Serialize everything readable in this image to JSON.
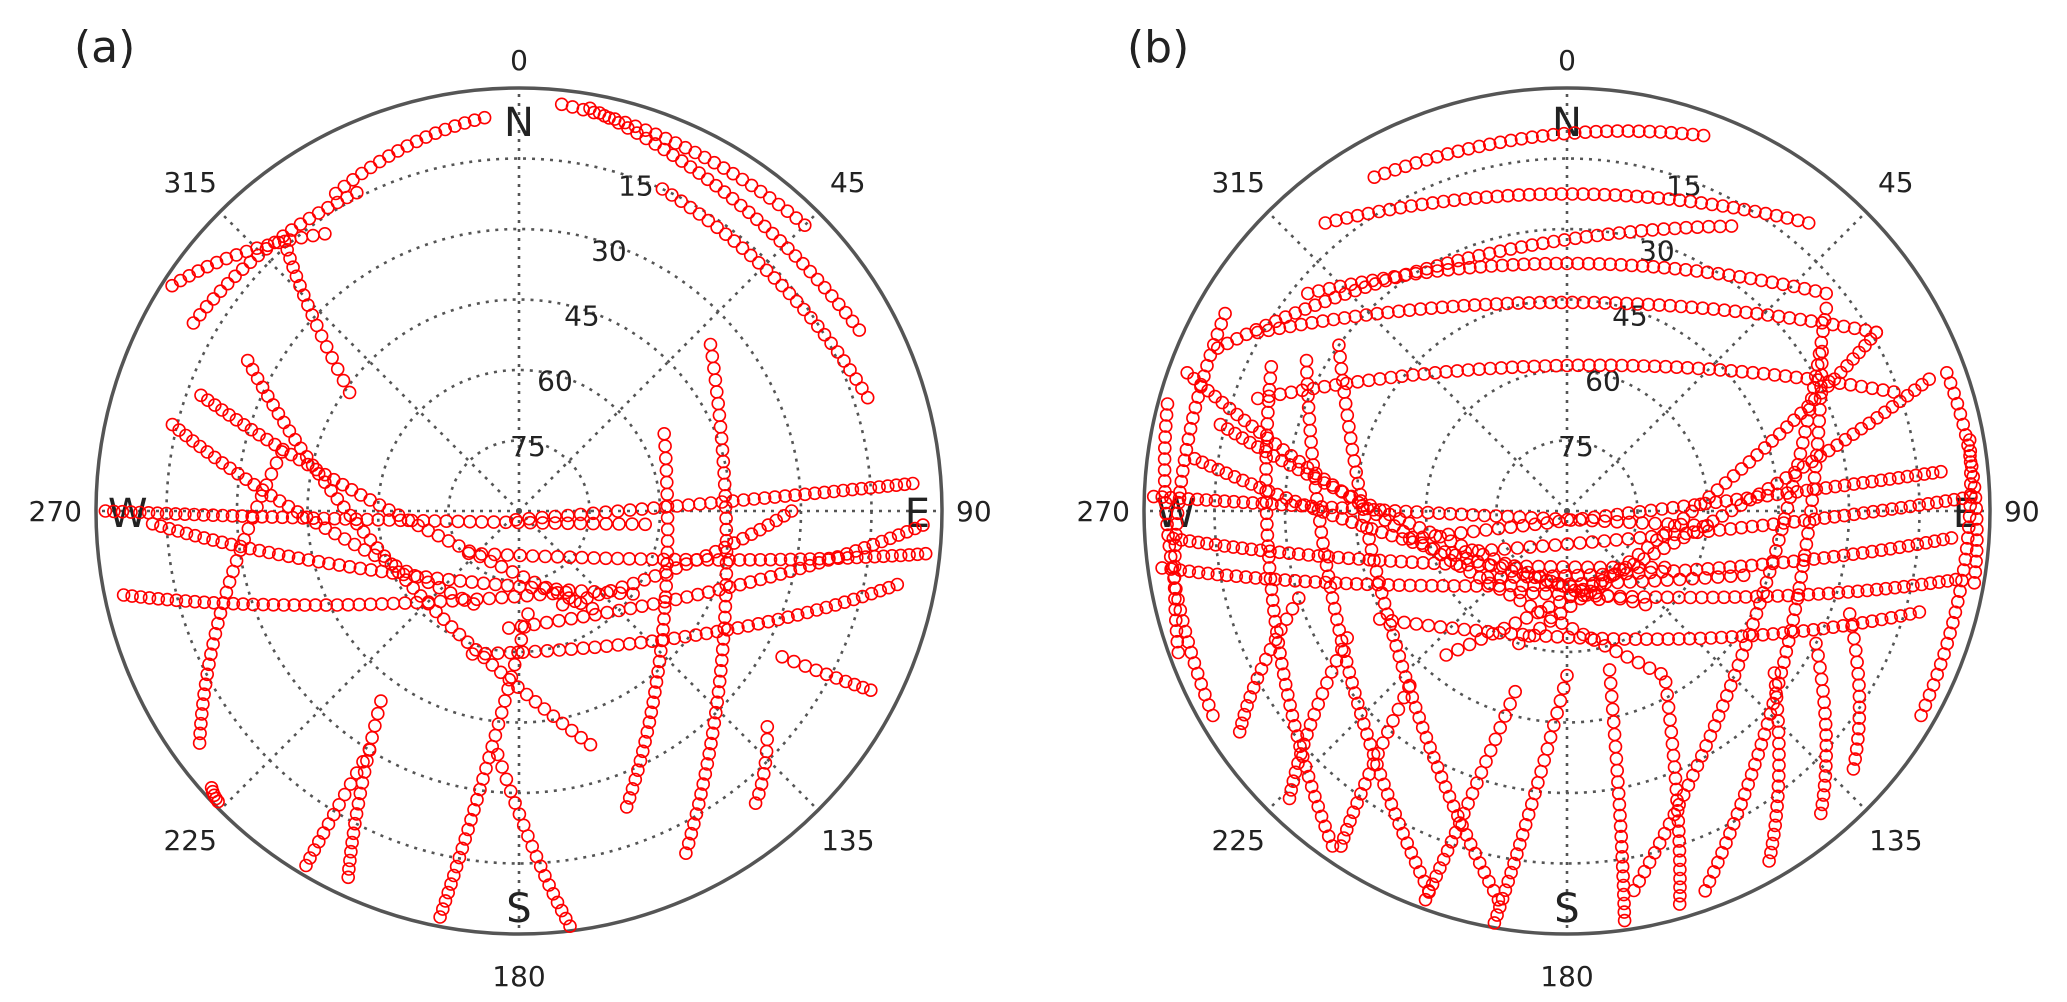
{
  "figure": {
    "point_color": "#ff0000",
    "grid_color": "#555555"
  },
  "chart_data": [
    {
      "type": "scatter",
      "panel_label": "(a)",
      "projection": "polar",
      "title": "",
      "xlabel": "",
      "ylabel": "",
      "azimuth_range": [
        0,
        360
      ],
      "elevation_range": [
        0,
        90
      ],
      "azimuth_ticks": [
        "0",
        "45",
        "90",
        "135",
        "180",
        "225",
        "270",
        "315"
      ],
      "elevation_ticks": [
        "15",
        "30",
        "45",
        "60",
        "75"
      ],
      "direction_labels": [
        "N",
        "E",
        "S",
        "W"
      ],
      "grid": true,
      "legend": "none",
      "series": [
        {
          "azimuth": [
            5,
            360
          ],
          "elevation": [
            2,
            1
          ],
          "note": ""
        },
        {
          "points": [
            [
              340,
              4
            ],
            [
              332,
              8
            ],
            [
              322,
              14
            ],
            [
              312,
              22
            ],
            [
              302,
              31
            ]
          ]
        }
      ],
      "tracks": [
        {
          "az0": 330,
          "el0": 12,
          "az1": 355,
          "el1": 6
        },
        {
          "az0": 303,
          "el0": 2,
          "az1": 325,
          "el1": 18
        },
        {
          "az0": 300,
          "el0": 10,
          "az1": 333,
          "el1": 14
        },
        {
          "az0": 319,
          "el0": 14,
          "az1": 305,
          "el1": 46
        },
        {
          "az0": 6,
          "el0": 3,
          "az1": 45,
          "el1": 4
        },
        {
          "az0": 10,
          "el0": 3,
          "az1": 62,
          "el1": 8
        },
        {
          "az0": 24,
          "el0": 15,
          "az1": 72,
          "el1": 12
        },
        {
          "az0": 90,
          "el0": 32,
          "az1": 155,
          "el1": 68
        },
        {
          "az0": 86,
          "el0": 6,
          "az1": 200,
          "el1": 88
        },
        {
          "az0": 92,
          "el0": 4,
          "az1": 185,
          "el1": 65
        },
        {
          "az0": 96,
          "el0": 3,
          "az1": 230,
          "el1": 76
        },
        {
          "az0": 101,
          "el0": 8,
          "az1": 198,
          "el1": 58
        },
        {
          "az0": 62,
          "el0": 55,
          "az1": 160,
          "el1": 23
        },
        {
          "az0": 49,
          "el0": 36,
          "az1": 154,
          "el1": 9
        },
        {
          "az0": 141,
          "el0": 10,
          "az1": 131,
          "el1": 20
        },
        {
          "az0": 117,
          "el0": 6,
          "az1": 119,
          "el1": 26
        },
        {
          "az0": 270,
          "el0": 2,
          "az1": 96,
          "el1": 63
        },
        {
          "az0": 258,
          "el0": 4,
          "az1": 150,
          "el1": 70
        },
        {
          "az0": 268,
          "el0": 12,
          "az1": 126,
          "el1": 60
        },
        {
          "az0": 284,
          "el0": 14,
          "az1": 206,
          "el1": 68
        },
        {
          "az0": 290,
          "el0": 18,
          "az1": 143,
          "el1": 64
        },
        {
          "az0": 299,
          "el0": 24,
          "az1": 163,
          "el1": 38
        },
        {
          "az0": 234,
          "el0": 6,
          "az1": 284,
          "el1": 38
        },
        {
          "az0": 211,
          "el0": 2,
          "az1": 212,
          "el1": 30
        },
        {
          "az0": 205,
          "el0": 4,
          "az1": 216,
          "el1": 40
        },
        {
          "az0": 191,
          "el0": 2,
          "az1": 175,
          "el1": 68
        },
        {
          "az0": 173,
          "el0": 1,
          "az1": 185,
          "el1": 38
        },
        {
          "az0": 228,
          "el0": 2,
          "az1": 226,
          "el1": 1
        }
      ]
    },
    {
      "type": "scatter",
      "panel_label": "(b)",
      "projection": "polar",
      "title": "",
      "xlabel": "",
      "ylabel": "",
      "azimuth_range": [
        0,
        360
      ],
      "elevation_range": [
        0,
        90
      ],
      "azimuth_ticks": [
        "0",
        "45",
        "90",
        "135",
        "180",
        "225",
        "270",
        "315"
      ],
      "elevation_ticks": [
        "15",
        "30",
        "45",
        "60",
        "75"
      ],
      "direction_labels": [
        "N",
        "E",
        "S",
        "W"
      ],
      "grid": true,
      "legend": "none",
      "tracks": [
        {
          "az0": 300,
          "el0": 14,
          "az1": 60,
          "el1": 14
        },
        {
          "az0": 310,
          "el0": 18,
          "az1": 50,
          "el1": 18
        },
        {
          "az0": 320,
          "el0": 10,
          "az1": 40,
          "el1": 10
        },
        {
          "az0": 295,
          "el0": 8,
          "az1": 30,
          "el1": 20
        },
        {
          "az0": 290,
          "el0": 20,
          "az1": 70,
          "el1": 16
        },
        {
          "az0": 330,
          "el0": 8,
          "az1": 20,
          "el1": 5
        },
        {
          "az0": 272,
          "el0": 2,
          "az1": 96,
          "el1": 60
        },
        {
          "az0": 266,
          "el0": 6,
          "az1": 120,
          "el1": 66
        },
        {
          "az0": 278,
          "el0": 10,
          "az1": 140,
          "el1": 64
        },
        {
          "az0": 284,
          "el0": 14,
          "az1": 160,
          "el1": 70
        },
        {
          "az0": 262,
          "el0": 3,
          "az1": 110,
          "el1": 50
        },
        {
          "az0": 290,
          "el0": 4,
          "az1": 150,
          "el1": 50
        },
        {
          "az0": 88,
          "el0": 4,
          "az1": 250,
          "el1": 64
        },
        {
          "az0": 94,
          "el0": 8,
          "az1": 230,
          "el1": 68
        },
        {
          "az0": 100,
          "el0": 6,
          "az1": 210,
          "el1": 70
        },
        {
          "az0": 84,
          "el0": 10,
          "az1": 260,
          "el1": 56
        },
        {
          "az0": 70,
          "el0": 8,
          "az1": 220,
          "el1": 50
        },
        {
          "az0": 106,
          "el0": 12,
          "az1": 240,
          "el1": 44
        },
        {
          "az0": 60,
          "el0": 14,
          "az1": 200,
          "el1": 60
        },
        {
          "az0": 52,
          "el0": 20,
          "az1": 170,
          "el1": 8
        },
        {
          "az0": 58,
          "el0": 26,
          "az1": 160,
          "el1": 4
        },
        {
          "az0": 300,
          "el0": 26,
          "az1": 200,
          "el1": 4
        },
        {
          "az0": 306,
          "el0": 30,
          "az1": 190,
          "el1": 6
        },
        {
          "az0": 296,
          "el0": 20,
          "az1": 215,
          "el1": 3
        },
        {
          "az0": 200,
          "el0": 2,
          "az1": 196,
          "el1": 50
        },
        {
          "az0": 190,
          "el0": 1,
          "az1": 180,
          "el1": 55
        },
        {
          "az0": 172,
          "el0": 2,
          "az1": 165,
          "el1": 55
        },
        {
          "az0": 164,
          "el0": 3,
          "az1": 150,
          "el1": 48
        },
        {
          "az0": 214,
          "el0": 4,
          "az1": 222,
          "el1": 40
        },
        {
          "az0": 224,
          "el0": 5,
          "az1": 240,
          "el1": 36
        },
        {
          "az0": 236,
          "el0": 6,
          "az1": 252,
          "el1": 30
        },
        {
          "az0": 150,
          "el0": 4,
          "az1": 128,
          "el1": 34
        },
        {
          "az0": 140,
          "el0": 6,
          "az1": 118,
          "el1": 30
        },
        {
          "az0": 132,
          "el0": 8,
          "az1": 110,
          "el1": 26
        },
        {
          "az0": 250,
          "el0": 2,
          "az1": 300,
          "el1": 6
        },
        {
          "az0": 100,
          "el0": 2,
          "az1": 70,
          "el1": 4
        },
        {
          "az0": 120,
          "el0": 3,
          "az1": 80,
          "el1": 3
        },
        {
          "az0": 240,
          "el0": 3,
          "az1": 285,
          "el1": 2
        }
      ]
    }
  ]
}
